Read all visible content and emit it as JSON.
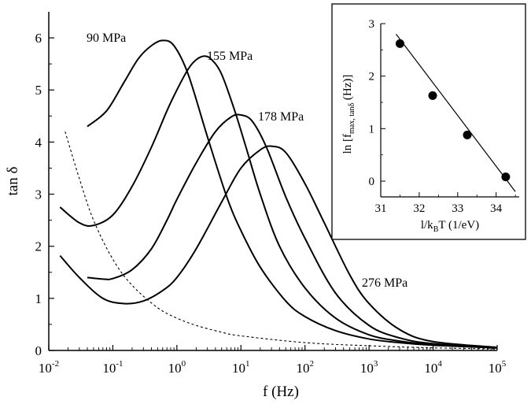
{
  "chart_data": [
    {
      "type": "line",
      "xlabel": "f (Hz)",
      "ylabel": "tan δ",
      "xscale": "log",
      "xlim": [
        0.01,
        100000
      ],
      "ylim": [
        0,
        6.5
      ],
      "x_tick_labels": [
        {
          "base": "10",
          "exp": "-2"
        },
        {
          "base": "10",
          "exp": "-1"
        },
        {
          "base": "10",
          "exp": "0"
        },
        {
          "base": "10",
          "exp": "1"
        },
        {
          "base": "10",
          "exp": "2"
        },
        {
          "base": "10",
          "exp": "3"
        },
        {
          "base": "10",
          "exp": "4"
        },
        {
          "base": "10",
          "exp": "5"
        }
      ],
      "y_ticks": [
        0,
        1,
        2,
        3,
        4,
        5,
        6
      ],
      "series": [
        {
          "name": "90 MPa",
          "style": "solid",
          "x": [
            0.04,
            0.08,
            0.15,
            0.25,
            0.4,
            0.6,
            0.9,
            1.5,
            3,
            6,
            10,
            20,
            50,
            100,
            300,
            1000,
            3000,
            10000,
            100000
          ],
          "y": [
            4.3,
            4.6,
            5.15,
            5.6,
            5.85,
            5.95,
            5.85,
            5.3,
            4.1,
            2.95,
            2.3,
            1.6,
            0.95,
            0.65,
            0.38,
            0.22,
            0.15,
            0.1,
            0.05
          ]
        },
        {
          "name": "155 MPa",
          "style": "solid",
          "x": [
            0.015,
            0.03,
            0.05,
            0.1,
            0.2,
            0.4,
            0.7,
            1,
            1.5,
            2,
            2.7,
            3.5,
            5,
            8,
            12,
            20,
            40,
            100,
            300,
            1000,
            3000,
            10000,
            100000
          ],
          "y": [
            2.75,
            2.45,
            2.4,
            2.6,
            3.15,
            3.9,
            4.6,
            5.0,
            5.4,
            5.58,
            5.65,
            5.58,
            5.3,
            4.6,
            3.9,
            3.0,
            2.0,
            1.2,
            0.62,
            0.3,
            0.18,
            0.11,
            0.05
          ]
        },
        {
          "name": "178 MPa",
          "style": "solid",
          "x": [
            0.04,
            0.07,
            0.1,
            0.2,
            0.4,
            0.7,
            1,
            2,
            4,
            7,
            10,
            15,
            25,
            50,
            100,
            300,
            1000,
            3000,
            10000,
            100000
          ],
          "y": [
            1.4,
            1.37,
            1.38,
            1.55,
            1.95,
            2.5,
            2.9,
            3.6,
            4.2,
            4.48,
            4.52,
            4.4,
            3.9,
            2.95,
            2.15,
            1.1,
            0.48,
            0.24,
            0.13,
            0.05
          ]
        },
        {
          "name": "276 MPa",
          "style": "solid",
          "x": [
            0.015,
            0.03,
            0.07,
            0.15,
            0.3,
            0.6,
            1,
            2,
            5,
            10,
            20,
            30,
            50,
            100,
            200,
            500,
            1000,
            3000,
            10000,
            100000
          ],
          "y": [
            1.82,
            1.4,
            1.0,
            0.9,
            0.95,
            1.15,
            1.4,
            1.95,
            2.85,
            3.5,
            3.85,
            3.92,
            3.8,
            3.2,
            2.45,
            1.45,
            0.9,
            0.4,
            0.17,
            0.06
          ]
        },
        {
          "name": "",
          "style": "dashed",
          "x": [
            0.018,
            0.03,
            0.05,
            0.1,
            0.2,
            0.5,
            1,
            2,
            5,
            10,
            100,
            1000,
            10000,
            100000
          ],
          "y": [
            4.2,
            3.3,
            2.5,
            1.75,
            1.25,
            0.82,
            0.62,
            0.48,
            0.35,
            0.28,
            0.15,
            0.09,
            0.05,
            0.03
          ]
        }
      ]
    },
    {
      "type": "scatter",
      "xlabel_parts": {
        "pre": "l/k",
        "sub": "B",
        "post": "T (1/eV)"
      },
      "ylabel_parts": {
        "pre": "ln [f",
        "sub": "max, tanδ",
        "post": " (Hz)]"
      },
      "xlim": [
        31,
        34.6
      ],
      "ylim": [
        -0.3,
        3
      ],
      "x_ticks": [
        31,
        32,
        33,
        34
      ],
      "y_ticks": [
        0,
        1,
        2,
        3
      ],
      "points": [
        {
          "x": 31.5,
          "y": 2.62
        },
        {
          "x": 32.35,
          "y": 1.63
        },
        {
          "x": 33.25,
          "y": 0.88
        },
        {
          "x": 34.25,
          "y": 0.08
        }
      ],
      "fit_line": {
        "x": [
          31.4,
          34.5
        ],
        "y": [
          2.8,
          -0.2
        ]
      }
    }
  ]
}
